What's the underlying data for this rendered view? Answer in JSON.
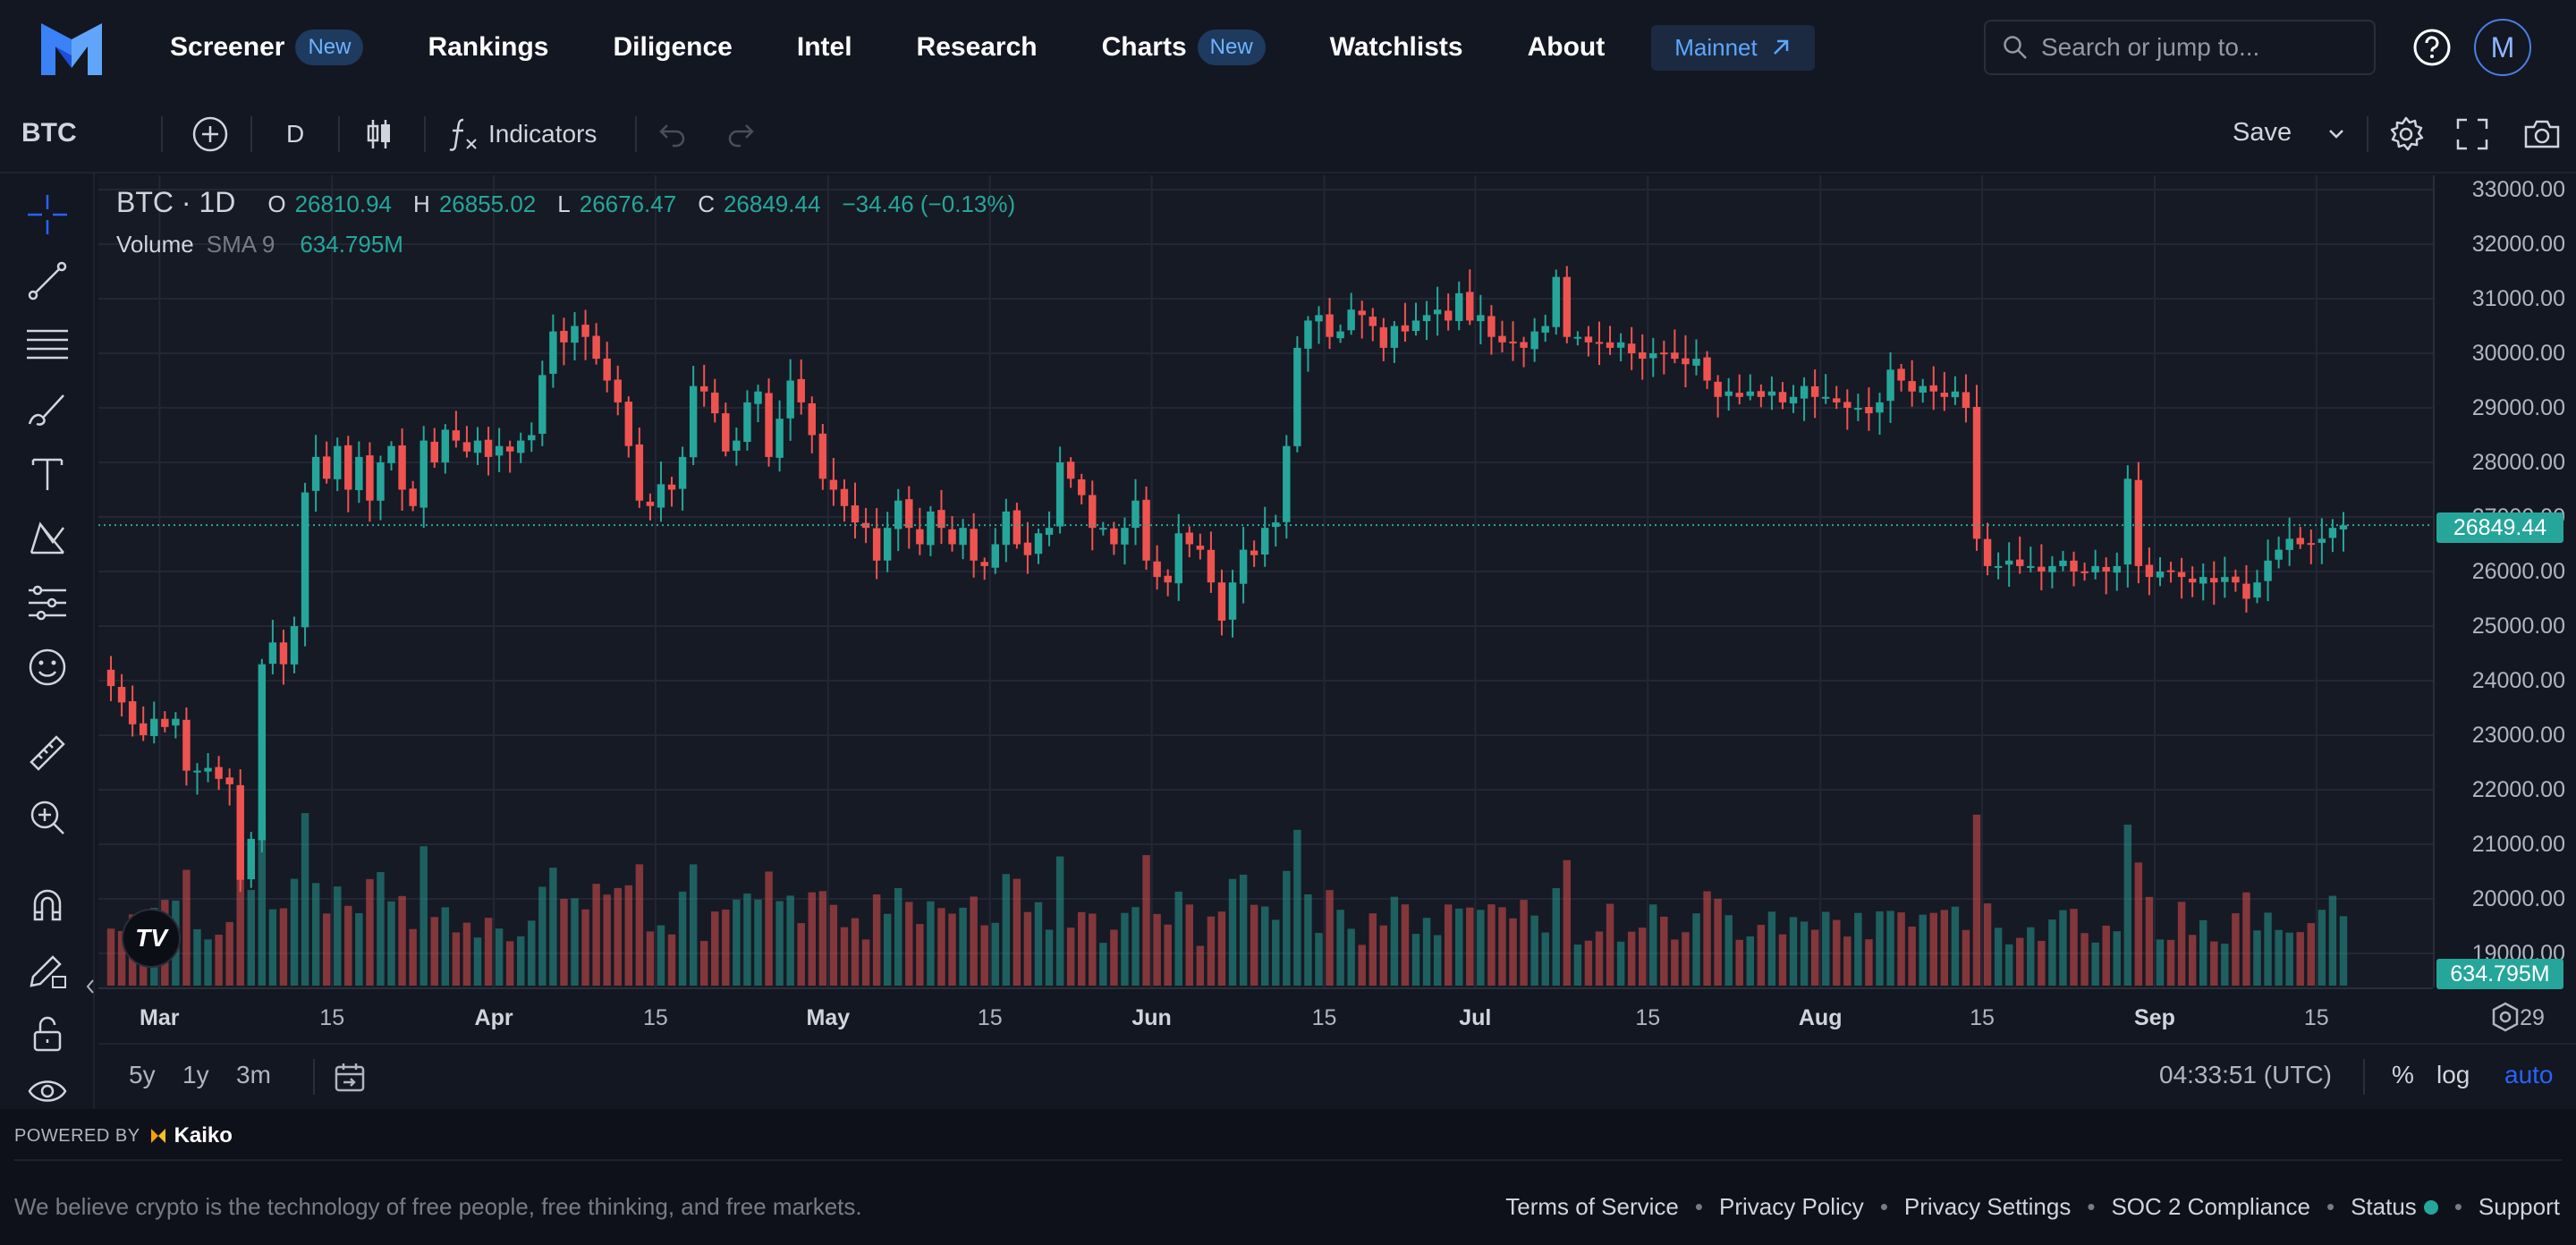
{
  "nav": {
    "items": [
      {
        "label": "Screener",
        "badge": "New"
      },
      {
        "label": "Rankings",
        "badge": ""
      },
      {
        "label": "Diligence",
        "badge": ""
      },
      {
        "label": "Intel",
        "badge": ""
      },
      {
        "label": "Research",
        "badge": ""
      },
      {
        "label": "Charts",
        "badge": "New"
      },
      {
        "label": "Watchlists",
        "badge": ""
      },
      {
        "label": "About",
        "badge": ""
      }
    ],
    "network_label": "Mainnet",
    "search_placeholder": "Search or jump to...",
    "avatar_initial": "M"
  },
  "toolbar": {
    "symbol": "BTC",
    "interval": "D",
    "indicators_label": "Indicators",
    "save_label": "Save"
  },
  "legend": {
    "symbol_interval": "BTC · 1D",
    "open_key": "O",
    "open": "26810.94",
    "high_key": "H",
    "high": "26855.02",
    "low_key": "L",
    "low": "26676.47",
    "close_key": "C",
    "close": "26849.44",
    "change": "−34.46 (−0.13%)",
    "volume_label": "Volume",
    "sma_label": "SMA 9",
    "volume_value": "634.795M"
  },
  "price_axis": [
    "33000.00",
    "32000.00",
    "31000.00",
    "30000.00",
    "29000.00",
    "28000.00",
    "27000.00",
    "26000.00",
    "25000.00",
    "24000.00",
    "23000.00",
    "22000.00",
    "21000.00",
    "20000.00",
    "19000.00"
  ],
  "last_price_tag": "26849.44",
  "volume_tag": "634.795M",
  "time_axis": [
    {
      "label": "Mar",
      "major": true
    },
    {
      "label": "15",
      "major": false
    },
    {
      "label": "Apr",
      "major": true
    },
    {
      "label": "15",
      "major": false
    },
    {
      "label": "May",
      "major": true
    },
    {
      "label": "15",
      "major": false
    },
    {
      "label": "Jun",
      "major": true
    },
    {
      "label": "15",
      "major": false
    },
    {
      "label": "Jul",
      "major": true
    },
    {
      "label": "15",
      "major": false
    },
    {
      "label": "Aug",
      "major": true
    },
    {
      "label": "15",
      "major": false
    },
    {
      "label": "Sep",
      "major": true
    },
    {
      "label": "15",
      "major": false
    },
    {
      "label": "29",
      "major": false
    }
  ],
  "bottom": {
    "ranges": [
      "5y",
      "1y",
      "3m"
    ],
    "clock": "04:33:51 (UTC)",
    "percent": "%",
    "log": "log",
    "auto": "auto"
  },
  "colors": {
    "up": "#26a69a",
    "down": "#ef5350",
    "accent": "#2962ff"
  },
  "footer": {
    "powered_by": "POWERED BY",
    "provider": "Kaiko",
    "tagline": "We believe crypto is the technology of free people, free thinking, and free markets.",
    "links": [
      "Terms of Service",
      "Privacy Policy",
      "Privacy Settings",
      "SOC 2 Compliance",
      "Status",
      "Support"
    ]
  },
  "chart_data": {
    "type": "candlestick",
    "symbol": "BTC",
    "interval": "1D",
    "ylim": [
      19000,
      33000
    ],
    "x_range": [
      "Feb 24",
      "Sep 19"
    ],
    "last": {
      "open": 26810.94,
      "high": 26855.02,
      "low": 26676.47,
      "close": 26849.44,
      "change": -34.46,
      "change_pct": -0.13
    },
    "closes": [
      23900,
      23600,
      23200,
      23000,
      23300,
      23150,
      23300,
      22350,
      22350,
      22400,
      22200,
      22100,
      20350,
      21100,
      24300,
      24700,
      24300,
      25000,
      27450,
      28100,
      27700,
      28300,
      27500,
      28100,
      27300,
      28000,
      28300,
      27500,
      27200,
      28400,
      28000,
      28600,
      28400,
      28200,
      28400,
      28100,
      28300,
      28200,
      28400,
      28500,
      29600,
      30400,
      30200,
      30500,
      30300,
      29900,
      29500,
      29100,
      28300,
      27300,
      27200,
      27600,
      27500,
      28100,
      29400,
      29300,
      28900,
      28200,
      28400,
      29100,
      29300,
      28100,
      28800,
      29500,
      29100,
      28500,
      27700,
      27500,
      27200,
      26900,
      26800,
      26200,
      26800,
      27300,
      26800,
      26500,
      27100,
      26800,
      26500,
      26800,
      26200,
      26100,
      26500,
      27100,
      26500,
      26300,
      26700,
      26800,
      28000,
      27700,
      27400,
      26800,
      26800,
      26500,
      26800,
      27300,
      26200,
      25900,
      25800,
      26700,
      26500,
      26400,
      25800,
      25100,
      25800,
      26400,
      26300,
      26800,
      26900,
      28300,
      30100,
      30600,
      30700,
      30300,
      30400,
      30800,
      30700,
      30500,
      30100,
      30500,
      30400,
      30600,
      30700,
      30800,
      30600,
      31100,
      30600,
      30700,
      30300,
      30200,
      30200,
      30100,
      30400,
      30500,
      31400,
      30300,
      30300,
      30200,
      30200,
      30100,
      30200,
      30000,
      29900,
      30000,
      30000,
      29900,
      29800,
      29900,
      29500,
      29200,
      29300,
      29200,
      29300,
      29200,
      29300,
      29100,
      29200,
      29400,
      29200,
      29200,
      29100,
      29000,
      29000,
      28900,
      29100,
      29700,
      29500,
      29300,
      29400,
      29300,
      29200,
      29300,
      29000,
      26600,
      26100,
      26100,
      26200,
      26100,
      26100,
      26000,
      26100,
      26200,
      26000,
      26000,
      26100,
      26000,
      26100,
      27700,
      26100,
      25900,
      26000,
      26000,
      25900,
      25800,
      25900,
      25800,
      25900,
      25800,
      25500,
      25800,
      26200,
      26400,
      26600,
      26500,
      26500,
      26600,
      26800,
      26849
    ]
  }
}
